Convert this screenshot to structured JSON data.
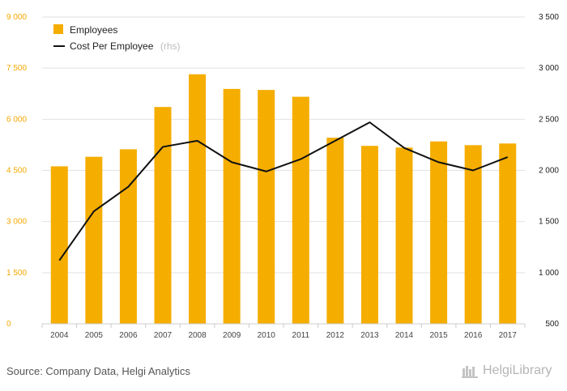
{
  "colors": {
    "bar": "#f5ad00",
    "line": "#111111",
    "left_axis": "#f5a800"
  },
  "chart_data": {
    "type": "bar",
    "categories": [
      "2004",
      "2005",
      "2006",
      "2007",
      "2008",
      "2009",
      "2010",
      "2011",
      "2012",
      "2013",
      "2014",
      "2015",
      "2016",
      "2017"
    ],
    "series": [
      {
        "name": "Employees",
        "type": "bar",
        "axis": "left",
        "values": [
          4620,
          4900,
          5120,
          6360,
          7320,
          6890,
          6860,
          6660,
          5460,
          5220,
          5170,
          5350,
          5240,
          5290
        ]
      },
      {
        "name": "Cost Per Employee",
        "type": "line",
        "axis": "right",
        "values": [
          1120,
          1600,
          1840,
          2230,
          2290,
          2080,
          1990,
          2110,
          2290,
          2470,
          2220,
          2080,
          2000,
          2130
        ]
      }
    ],
    "yleft": {
      "min": 0,
      "max": 9000,
      "ticks": [
        "0",
        "1 500",
        "3 000",
        "4 500",
        "6 000",
        "7 500",
        "9 000"
      ]
    },
    "yright": {
      "min": 500,
      "max": 3500,
      "ticks": [
        "500",
        "1 000",
        "1 500",
        "2 000",
        "2 500",
        "3 000",
        "3 500"
      ]
    },
    "legend": {
      "position": "top-left",
      "items": [
        "Employees",
        "Cost Per Employee"
      ],
      "suffix": "(rhs)"
    }
  },
  "footer": {
    "source": "Source: Company Data, Helgi Analytics",
    "logo_text": "HelgiLibrary"
  }
}
